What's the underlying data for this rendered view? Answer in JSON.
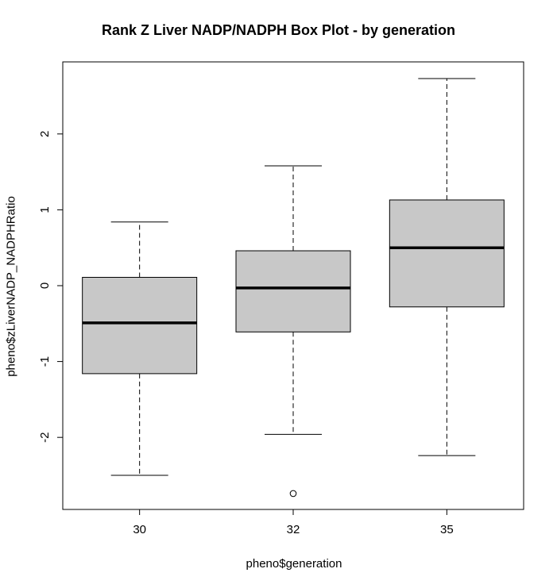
{
  "chart_data": {
    "type": "box",
    "title": "Rank Z Liver NADP/NADPH Box Plot - by generation",
    "xlabel": "pheno$generation",
    "ylabel": "pheno$zLiverNADP_NADPHRatio",
    "categories": [
      "30",
      "32",
      "35"
    ],
    "ylim": [
      -2.95,
      2.95
    ],
    "yticks": [
      -2,
      -1,
      0,
      1,
      2
    ],
    "ytick_labels": [
      "-2",
      "-1",
      "0",
      "1",
      "2"
    ],
    "boxes": [
      {
        "category": "30",
        "whisker_low": -2.5,
        "q1": -1.16,
        "median": -0.49,
        "q3": 0.11,
        "whisker_high": 0.84,
        "outliers": []
      },
      {
        "category": "32",
        "whisker_low": -1.96,
        "q1": -0.61,
        "median": -0.03,
        "q3": 0.46,
        "whisker_high": 1.58,
        "outliers": [
          -2.74
        ]
      },
      {
        "category": "35",
        "whisker_low": -2.24,
        "q1": -0.28,
        "median": 0.5,
        "q3": 1.13,
        "whisker_high": 2.73,
        "outliers": []
      }
    ],
    "box_fill": "#c8c8c8",
    "line_color": "#000000",
    "grid": false,
    "legend": "none"
  }
}
